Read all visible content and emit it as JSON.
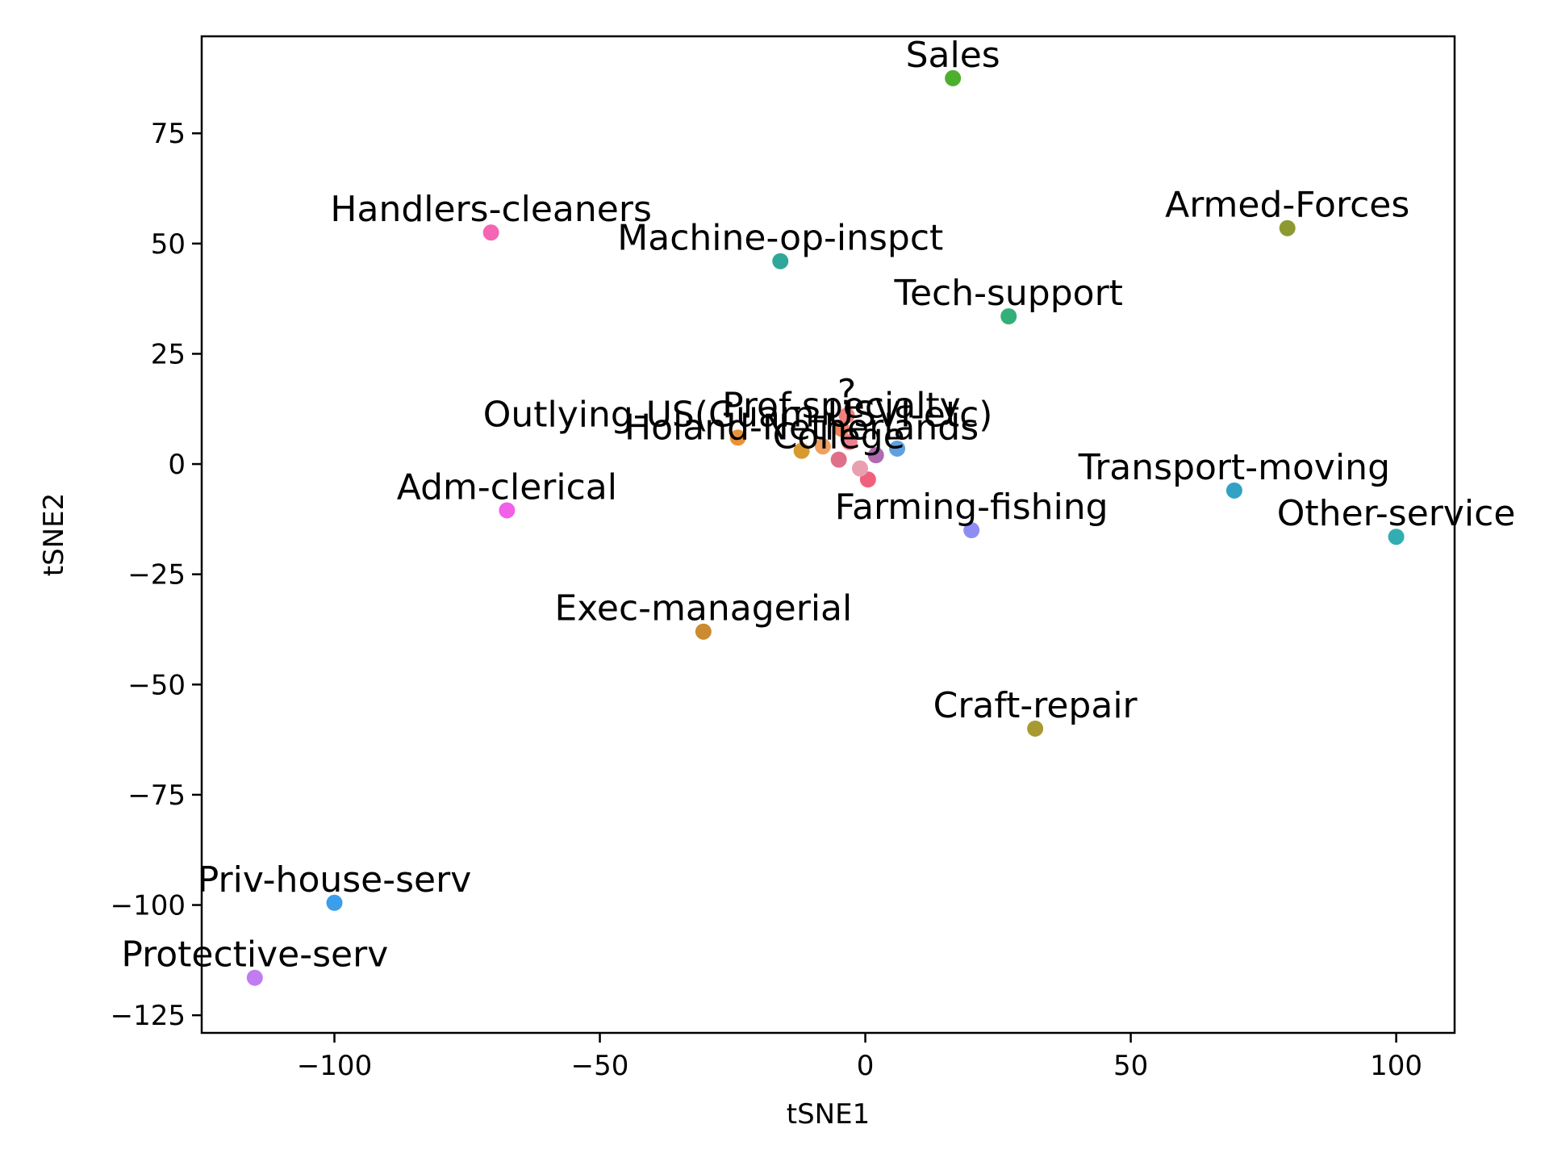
{
  "chart_data": {
    "type": "scatter",
    "title": "",
    "xlabel": "tSNE1",
    "ylabel": "tSNE2",
    "xlim": [
      -125,
      111
    ],
    "ylim": [
      -129,
      97
    ],
    "xticks": [
      -100,
      -50,
      0,
      50,
      100
    ],
    "yticks": [
      -125,
      -100,
      -75,
      -50,
      -25,
      0,
      25,
      50,
      75
    ],
    "xtick_labels": [
      "−100",
      "−50",
      "0",
      "50",
      "100"
    ],
    "ytick_labels": [
      "−125",
      "−100",
      "−75",
      "−50",
      "−25",
      "0",
      "25",
      "50",
      "75"
    ],
    "grid": false,
    "points": [
      {
        "label": "Sales",
        "x": 16.5,
        "y": 87.5,
        "color": "#4daf2e"
      },
      {
        "label": "Handlers-cleaners",
        "x": -70.5,
        "y": 52.5,
        "color": "#f565b4"
      },
      {
        "label": "Machine-op-inspct",
        "x": -16.0,
        "y": 46.0,
        "color": "#2fa89b"
      },
      {
        "label": "Armed-Forces",
        "x": 79.5,
        "y": 53.5,
        "color": "#8d9a31"
      },
      {
        "label": "Tech-support",
        "x": 27.0,
        "y": 33.5,
        "color": "#33b07a"
      },
      {
        "label": "?",
        "x": -3.5,
        "y": 11.0,
        "color": "#f07f7f"
      },
      {
        "label": "Prof-specialty",
        "x": -4.5,
        "y": 8.0,
        "color": "#f0855c"
      },
      {
        "label": "Outlying-US(Guam-USVI-etc)",
        "x": -24.0,
        "y": 6.0,
        "color": "#e8923a"
      },
      {
        "label": "Holand-Netherlands",
        "x": -12.0,
        "y": 3.0,
        "color": "#d69a2e"
      },
      {
        "label": "College",
        "x": -5.0,
        "y": 1.0,
        "color": "#e0708a"
      },
      {
        "label": "Transport-moving",
        "x": 69.5,
        "y": -6.0,
        "color": "#33a1c6"
      },
      {
        "label": "Farming-fishing",
        "x": 20.0,
        "y": -15.0,
        "color": "#8e8ef2"
      },
      {
        "label": "Adm-clerical",
        "x": -67.5,
        "y": -10.5,
        "color": "#f25fe8"
      },
      {
        "label": "Other-service",
        "x": 100.0,
        "y": -16.5,
        "color": "#31aeb1"
      },
      {
        "label": "Exec-managerial",
        "x": -30.5,
        "y": -38.0,
        "color": "#cc8a31"
      },
      {
        "label": "Craft-repair",
        "x": 32.0,
        "y": -60.0,
        "color": "#a89a33"
      },
      {
        "label": "Priv-house-serv",
        "x": -100.0,
        "y": -99.5,
        "color": "#3a9eea"
      },
      {
        "label": "Protective-serv",
        "x": -115.0,
        "y": -116.5,
        "color": "#c27cf2"
      }
    ],
    "cluster_points": [
      {
        "x": 0.5,
        "y": -3.5,
        "color": "#f0607c"
      },
      {
        "x": -1.0,
        "y": -1.0,
        "color": "#e8a0b0"
      },
      {
        "x": -3.0,
        "y": 5.0,
        "color": "#f08090"
      },
      {
        "x": -8.0,
        "y": 4.0,
        "color": "#f0a060"
      },
      {
        "x": 2.0,
        "y": 2.0,
        "color": "#b06ab0"
      },
      {
        "x": 6.0,
        "y": 3.5,
        "color": "#60a0e0"
      }
    ]
  }
}
